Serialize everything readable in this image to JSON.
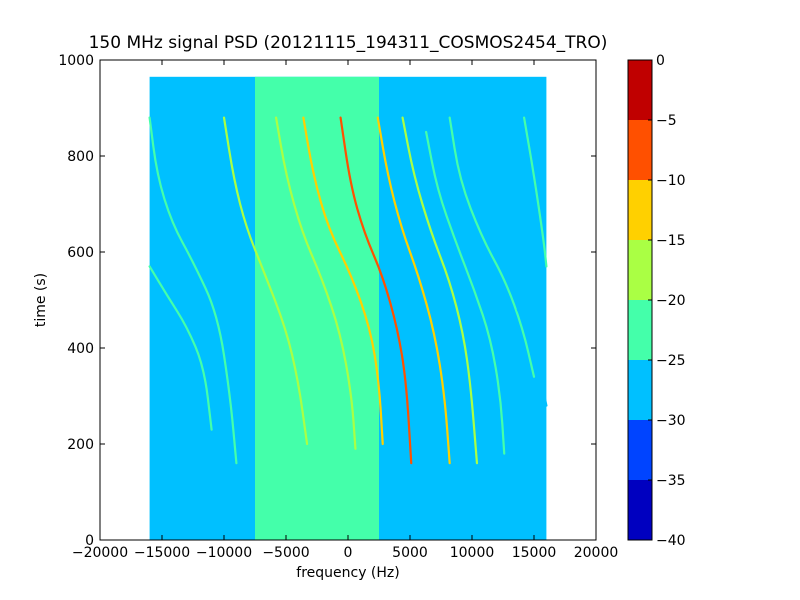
{
  "chart_data": {
    "type": "heatmap",
    "title": "150 MHz signal PSD (20121115_194311_COSMOS2454_TRO)",
    "xlabel": "frequency (Hz)",
    "ylabel": "time (s)",
    "xlim": [
      -20000,
      20000
    ],
    "ylim": [
      0,
      1000
    ],
    "xticks": [
      -20000,
      -15000,
      -10000,
      -5000,
      0,
      5000,
      10000,
      15000,
      20000
    ],
    "xtick_labels": [
      "−20000",
      "−15000",
      "−10000",
      "−5000",
      "0",
      "5000",
      "10000",
      "15000",
      "20000"
    ],
    "yticks": [
      0,
      200,
      400,
      600,
      800,
      1000
    ],
    "ytick_labels": [
      "0",
      "200",
      "400",
      "600",
      "800",
      "1000"
    ],
    "data_extent": {
      "x": [
        -16000,
        16000
      ],
      "y": [
        0,
        965
      ]
    },
    "background_level": -27.5,
    "noise_floor_band": {
      "x": [
        -7500,
        2500
      ],
      "level": -22.5
    },
    "colorbar": {
      "min": -40,
      "max": 0,
      "ticks": [
        0,
        -5,
        -10,
        -15,
        -20,
        -25,
        -30,
        -35,
        -40
      ],
      "tick_labels": [
        "0",
        "−5",
        "−10",
        "−15",
        "−20",
        "−25",
        "−30",
        "−35",
        "−40"
      ],
      "levels": [
        {
          "range": [
            -40,
            -35
          ],
          "color": "#0000c0"
        },
        {
          "range": [
            -35,
            -30
          ],
          "color": "#0044ff"
        },
        {
          "range": [
            -30,
            -25
          ],
          "color": "#00c0ff"
        },
        {
          "range": [
            -25,
            -20
          ],
          "color": "#44ffaa"
        },
        {
          "range": [
            -20,
            -15
          ],
          "color": "#aaff44"
        },
        {
          "range": [
            -15,
            -10
          ],
          "color": "#ffd000"
        },
        {
          "range": [
            -10,
            -5
          ],
          "color": "#ff5000"
        },
        {
          "range": [
            -5,
            0
          ],
          "color": "#c00000"
        }
      ]
    },
    "traces": [
      {
        "points": [
          [
            -16000,
            570
          ],
          [
            -14600,
            510
          ],
          [
            -13000,
            445
          ],
          [
            -11600,
            360
          ],
          [
            -11000,
            230
          ]
        ],
        "level": -22.5
      },
      {
        "points": [
          [
            -16000,
            880
          ],
          [
            -15400,
            760
          ],
          [
            -14200,
            660
          ],
          [
            -12500,
            580
          ],
          [
            -10500,
            470
          ],
          [
            -9500,
            300
          ],
          [
            -9000,
            160
          ]
        ],
        "level": -22.5
      },
      {
        "points": [
          [
            -10000,
            880
          ],
          [
            -9200,
            750
          ],
          [
            -8200,
            650
          ],
          [
            -6800,
            560
          ],
          [
            -5000,
            440
          ],
          [
            -4000,
            330
          ],
          [
            -3300,
            200
          ]
        ],
        "level": -17.5
      },
      {
        "points": [
          [
            -5800,
            880
          ],
          [
            -5000,
            760
          ],
          [
            -3700,
            640
          ],
          [
            -2100,
            545
          ],
          [
            -600,
            430
          ],
          [
            300,
            300
          ],
          [
            600,
            190
          ]
        ],
        "level": -17.5
      },
      {
        "points": [
          [
            -3600,
            880
          ],
          [
            -2800,
            760
          ],
          [
            -1600,
            650
          ],
          [
            300,
            550
          ],
          [
            1800,
            440
          ],
          [
            2500,
            330
          ],
          [
            2800,
            200
          ]
        ],
        "level": -12.5
      },
      {
        "points": [
          [
            -600,
            880
          ],
          [
            200,
            740
          ],
          [
            1300,
            640
          ],
          [
            2800,
            550
          ],
          [
            4000,
            440
          ],
          [
            4700,
            330
          ],
          [
            5100,
            160
          ]
        ],
        "level": -7.5
      },
      {
        "points": [
          [
            2400,
            880
          ],
          [
            3200,
            760
          ],
          [
            4300,
            650
          ],
          [
            5700,
            550
          ],
          [
            7000,
            430
          ],
          [
            7800,
            300
          ],
          [
            8200,
            160
          ]
        ],
        "level": -12.5
      },
      {
        "points": [
          [
            4400,
            880
          ],
          [
            5300,
            760
          ],
          [
            6700,
            640
          ],
          [
            8200,
            540
          ],
          [
            9300,
            430
          ],
          [
            9900,
            320
          ],
          [
            10400,
            160
          ]
        ],
        "level": -17.5
      },
      {
        "points": [
          [
            6300,
            850
          ],
          [
            7200,
            730
          ],
          [
            8700,
            620
          ],
          [
            10200,
            520
          ],
          [
            11500,
            420
          ],
          [
            12300,
            300
          ],
          [
            12600,
            180
          ]
        ],
        "level": -22.5
      },
      {
        "points": [
          [
            8200,
            880
          ],
          [
            9000,
            750
          ],
          [
            10800,
            630
          ],
          [
            12700,
            540
          ],
          [
            14100,
            440
          ],
          [
            15000,
            340
          ]
        ],
        "level": -22.5
      },
      {
        "points": [
          [
            14200,
            880
          ],
          [
            15000,
            760
          ],
          [
            15800,
            620
          ],
          [
            16000,
            570
          ]
        ],
        "level": -22.5
      },
      {
        "points": [
          [
            13700,
            480
          ],
          [
            14700,
            430
          ],
          [
            15600,
            330
          ],
          [
            16000,
            280
          ]
        ],
        "level": -25.5
      }
    ],
    "grid": false,
    "legend": "colorbar right"
  }
}
